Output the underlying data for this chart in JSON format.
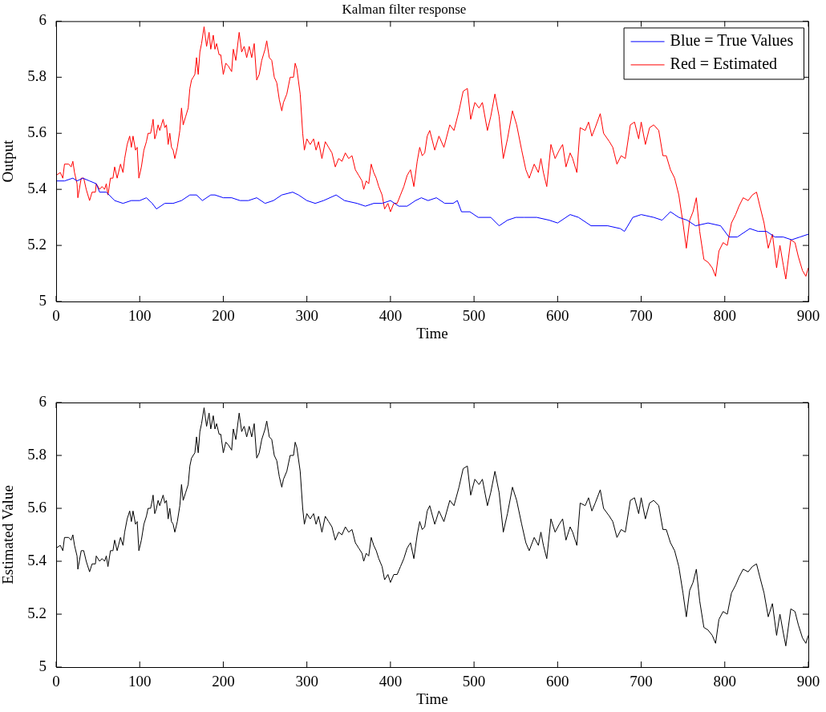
{
  "chart_data": [
    {
      "type": "line",
      "title": "Kalman filter response",
      "xlabel": "Time",
      "ylabel": "Output",
      "xlim": [
        0,
        900
      ],
      "xticks": [
        0,
        100,
        200,
        300,
        400,
        500,
        600,
        700,
        800,
        900
      ],
      "ylim": [
        5,
        6
      ],
      "yticks": [
        5,
        5.2,
        5.4,
        5.6,
        5.8,
        6
      ],
      "legend": "top right",
      "series": [
        {
          "name": "Blue = True Values",
          "color": "#0000ff",
          "x": [
            0,
            10,
            20,
            25,
            32,
            40,
            48,
            52,
            60,
            70,
            80,
            90,
            100,
            108,
            115,
            120,
            130,
            140,
            150,
            160,
            168,
            175,
            185,
            190,
            200,
            210,
            220,
            230,
            240,
            250,
            260,
            270,
            283,
            290,
            300,
            310,
            320,
            335,
            345,
            360,
            370,
            380,
            390,
            400,
            410,
            420,
            430,
            437,
            445,
            455,
            465,
            475,
            480,
            485,
            495,
            505,
            520,
            530,
            540,
            550,
            560,
            575,
            590,
            600,
            615,
            625,
            640,
            660,
            675,
            680,
            690,
            700,
            715,
            725,
            735,
            745,
            755,
            765,
            780,
            795,
            805,
            815,
            830,
            840,
            850,
            860,
            870,
            880,
            890,
            900
          ],
          "values": [
            5.43,
            5.43,
            5.44,
            5.43,
            5.44,
            5.43,
            5.42,
            5.39,
            5.39,
            5.36,
            5.35,
            5.36,
            5.36,
            5.37,
            5.35,
            5.33,
            5.35,
            5.35,
            5.36,
            5.38,
            5.38,
            5.36,
            5.38,
            5.38,
            5.37,
            5.37,
            5.36,
            5.36,
            5.37,
            5.35,
            5.36,
            5.38,
            5.39,
            5.38,
            5.36,
            5.35,
            5.36,
            5.38,
            5.36,
            5.35,
            5.34,
            5.35,
            5.35,
            5.36,
            5.34,
            5.34,
            5.36,
            5.37,
            5.36,
            5.37,
            5.35,
            5.35,
            5.36,
            5.32,
            5.32,
            5.3,
            5.3,
            5.27,
            5.29,
            5.3,
            5.3,
            5.3,
            5.29,
            5.28,
            5.31,
            5.3,
            5.27,
            5.27,
            5.26,
            5.25,
            5.3,
            5.31,
            5.3,
            5.29,
            5.32,
            5.3,
            5.29,
            5.27,
            5.28,
            5.27,
            5.23,
            5.23,
            5.26,
            5.25,
            5.25,
            5.23,
            5.23,
            5.22,
            5.23,
            5.24
          ]
        },
        {
          "name": "Red = Estimated",
          "color": "#ff0000",
          "x": [
            0,
            5,
            8,
            10,
            15,
            18,
            20,
            22,
            25,
            26,
            30,
            33,
            36,
            40,
            43,
            47,
            48,
            52,
            55,
            58,
            60,
            62,
            65,
            68,
            70,
            73,
            77,
            80,
            82,
            85,
            88,
            90,
            92,
            95,
            97,
            99,
            102,
            105,
            108,
            110,
            113,
            115,
            116,
            118,
            120,
            122,
            124,
            126,
            128,
            130,
            132,
            134,
            136,
            138,
            140,
            142,
            145,
            148,
            150,
            152,
            155,
            158,
            160,
            162,
            164,
            166,
            168,
            170,
            172,
            174,
            177,
            180,
            183,
            185,
            188,
            190,
            192,
            195,
            197,
            200,
            203,
            206,
            210,
            212,
            215,
            219,
            222,
            225,
            228,
            231,
            234,
            237,
            240,
            243,
            246,
            250,
            252,
            255,
            258,
            261,
            264,
            267,
            270,
            272,
            276,
            280,
            284,
            286,
            288,
            292,
            295,
            297,
            300,
            304,
            308,
            311,
            314,
            318,
            322,
            326,
            330,
            334,
            338,
            342,
            346,
            350,
            354,
            358,
            362,
            366,
            368,
            371,
            374,
            377,
            380,
            383,
            386,
            390,
            393,
            397,
            400,
            404,
            408,
            412,
            416,
            420,
            424,
            428,
            432,
            435,
            438,
            441,
            444,
            447,
            453,
            458,
            464,
            471,
            476,
            482,
            487,
            492,
            496,
            501,
            506,
            510,
            516,
            520,
            525,
            530,
            535,
            540,
            546,
            551,
            557,
            562,
            566,
            572,
            577,
            580,
            583,
            587,
            592,
            597,
            602,
            606,
            610,
            615,
            618,
            623,
            627,
            633,
            637,
            641,
            645,
            651,
            655,
            662,
            666,
            671,
            676,
            681,
            687,
            692,
            697,
            700,
            705,
            710,
            715,
            721,
            726,
            730,
            735,
            740,
            745,
            750,
            754,
            758,
            762,
            766,
            770,
            775,
            780,
            785,
            789,
            793,
            798,
            803,
            808,
            813,
            817,
            822,
            828,
            833,
            838,
            842,
            847,
            852,
            857,
            862,
            866,
            870,
            873,
            879,
            884,
            888,
            893,
            897,
            900
          ],
          "values": [
            5.45,
            5.46,
            5.44,
            5.49,
            5.49,
            5.48,
            5.5,
            5.46,
            5.42,
            5.37,
            5.44,
            5.44,
            5.4,
            5.36,
            5.39,
            5.39,
            5.42,
            5.4,
            5.41,
            5.4,
            5.42,
            5.38,
            5.44,
            5.44,
            5.48,
            5.44,
            5.49,
            5.46,
            5.51,
            5.56,
            5.59,
            5.55,
            5.59,
            5.54,
            5.55,
            5.44,
            5.48,
            5.54,
            5.57,
            5.6,
            5.6,
            5.63,
            5.65,
            5.58,
            5.6,
            5.63,
            5.61,
            5.63,
            5.65,
            5.62,
            5.63,
            5.56,
            5.6,
            5.55,
            5.54,
            5.51,
            5.55,
            5.61,
            5.69,
            5.63,
            5.66,
            5.69,
            5.76,
            5.79,
            5.8,
            5.81,
            5.87,
            5.81,
            5.89,
            5.92,
            5.98,
            5.91,
            5.96,
            5.9,
            5.95,
            5.9,
            5.92,
            5.88,
            5.88,
            5.81,
            5.85,
            5.84,
            5.82,
            5.9,
            5.86,
            5.96,
            5.89,
            5.91,
            5.87,
            5.91,
            5.87,
            5.92,
            5.79,
            5.81,
            5.86,
            5.9,
            5.93,
            5.87,
            5.86,
            5.8,
            5.78,
            5.72,
            5.68,
            5.71,
            5.74,
            5.8,
            5.8,
            5.85,
            5.83,
            5.74,
            5.6,
            5.54,
            5.58,
            5.56,
            5.58,
            5.54,
            5.57,
            5.51,
            5.57,
            5.55,
            5.53,
            5.48,
            5.51,
            5.5,
            5.53,
            5.51,
            5.52,
            5.47,
            5.45,
            5.43,
            5.4,
            5.43,
            5.42,
            5.49,
            5.46,
            5.44,
            5.41,
            5.38,
            5.33,
            5.35,
            5.32,
            5.35,
            5.35,
            5.38,
            5.41,
            5.45,
            5.47,
            5.41,
            5.5,
            5.55,
            5.52,
            5.53,
            5.59,
            5.61,
            5.54,
            5.59,
            5.55,
            5.63,
            5.61,
            5.68,
            5.75,
            5.76,
            5.65,
            5.71,
            5.69,
            5.71,
            5.61,
            5.66,
            5.74,
            5.66,
            5.51,
            5.58,
            5.68,
            5.63,
            5.54,
            5.47,
            5.44,
            5.49,
            5.46,
            5.51,
            5.46,
            5.41,
            5.56,
            5.51,
            5.54,
            5.56,
            5.48,
            5.53,
            5.51,
            5.46,
            5.62,
            5.61,
            5.64,
            5.59,
            5.62,
            5.67,
            5.6,
            5.57,
            5.55,
            5.49,
            5.52,
            5.51,
            5.63,
            5.64,
            5.58,
            5.64,
            5.56,
            5.62,
            5.63,
            5.61,
            5.52,
            5.52,
            5.47,
            5.44,
            5.38,
            5.28,
            5.19,
            5.29,
            5.32,
            5.37,
            5.25,
            5.15,
            5.14,
            5.12,
            5.09,
            5.18,
            5.21,
            5.2,
            5.28,
            5.31,
            5.34,
            5.37,
            5.36,
            5.38,
            5.39,
            5.34,
            5.28,
            5.19,
            5.24,
            5.12,
            5.2,
            5.13,
            5.08,
            5.22,
            5.21,
            5.16,
            5.11,
            5.09,
            5.12
          ]
        }
      ]
    },
    {
      "type": "line",
      "xlabel": "Time",
      "ylabel": "Estimated Value",
      "xlim": [
        0,
        900
      ],
      "xticks": [
        0,
        100,
        200,
        300,
        400,
        500,
        600,
        700,
        800,
        900
      ],
      "ylim": [
        5,
        6
      ],
      "yticks": [
        5,
        5.2,
        5.4,
        5.6,
        5.8,
        6
      ],
      "series": [
        {
          "color": "#000000",
          "x": [
            0,
            5,
            8,
            10,
            15,
            18,
            20,
            22,
            25,
            26,
            30,
            33,
            36,
            40,
            43,
            47,
            48,
            52,
            55,
            58,
            60,
            62,
            65,
            68,
            70,
            73,
            77,
            80,
            82,
            85,
            88,
            90,
            92,
            95,
            97,
            99,
            102,
            105,
            108,
            110,
            113,
            115,
            116,
            118,
            120,
            122,
            124,
            126,
            128,
            130,
            132,
            134,
            136,
            138,
            140,
            142,
            145,
            148,
            150,
            152,
            155,
            158,
            160,
            162,
            164,
            166,
            168,
            170,
            172,
            174,
            177,
            180,
            183,
            185,
            188,
            190,
            192,
            195,
            197,
            200,
            203,
            206,
            210,
            212,
            215,
            219,
            222,
            225,
            228,
            231,
            234,
            237,
            240,
            243,
            246,
            250,
            252,
            255,
            258,
            261,
            264,
            267,
            270,
            272,
            276,
            280,
            284,
            286,
            288,
            292,
            295,
            297,
            300,
            304,
            308,
            311,
            314,
            318,
            322,
            326,
            330,
            334,
            338,
            342,
            346,
            350,
            354,
            358,
            362,
            366,
            368,
            371,
            374,
            377,
            380,
            383,
            386,
            390,
            393,
            397,
            400,
            404,
            408,
            412,
            416,
            420,
            424,
            428,
            432,
            435,
            438,
            441,
            444,
            447,
            453,
            458,
            464,
            471,
            476,
            482,
            487,
            492,
            496,
            501,
            506,
            510,
            516,
            520,
            525,
            530,
            535,
            540,
            546,
            551,
            557,
            562,
            566,
            572,
            577,
            580,
            583,
            587,
            592,
            597,
            602,
            606,
            610,
            615,
            618,
            623,
            627,
            633,
            637,
            641,
            645,
            651,
            655,
            662,
            666,
            671,
            676,
            681,
            687,
            692,
            697,
            700,
            705,
            710,
            715,
            721,
            726,
            730,
            735,
            740,
            745,
            750,
            754,
            758,
            762,
            766,
            770,
            775,
            780,
            785,
            789,
            793,
            798,
            803,
            808,
            813,
            817,
            822,
            828,
            833,
            838,
            842,
            847,
            852,
            857,
            862,
            866,
            870,
            873,
            879,
            884,
            888,
            893,
            897,
            900
          ],
          "values": [
            5.45,
            5.46,
            5.44,
            5.49,
            5.49,
            5.48,
            5.5,
            5.46,
            5.42,
            5.37,
            5.44,
            5.44,
            5.4,
            5.36,
            5.39,
            5.39,
            5.42,
            5.4,
            5.41,
            5.4,
            5.42,
            5.38,
            5.44,
            5.44,
            5.48,
            5.44,
            5.49,
            5.46,
            5.51,
            5.56,
            5.59,
            5.55,
            5.59,
            5.54,
            5.55,
            5.44,
            5.48,
            5.54,
            5.57,
            5.6,
            5.6,
            5.63,
            5.65,
            5.58,
            5.6,
            5.63,
            5.61,
            5.63,
            5.65,
            5.62,
            5.63,
            5.56,
            5.6,
            5.55,
            5.54,
            5.51,
            5.55,
            5.61,
            5.69,
            5.63,
            5.66,
            5.69,
            5.76,
            5.79,
            5.8,
            5.81,
            5.87,
            5.81,
            5.89,
            5.92,
            5.98,
            5.91,
            5.96,
            5.9,
            5.95,
            5.9,
            5.92,
            5.88,
            5.88,
            5.81,
            5.85,
            5.84,
            5.82,
            5.9,
            5.86,
            5.96,
            5.89,
            5.91,
            5.87,
            5.91,
            5.87,
            5.92,
            5.79,
            5.81,
            5.86,
            5.9,
            5.93,
            5.87,
            5.86,
            5.8,
            5.78,
            5.72,
            5.68,
            5.71,
            5.74,
            5.8,
            5.8,
            5.85,
            5.83,
            5.74,
            5.6,
            5.54,
            5.58,
            5.56,
            5.58,
            5.54,
            5.57,
            5.51,
            5.57,
            5.55,
            5.53,
            5.48,
            5.51,
            5.5,
            5.53,
            5.51,
            5.52,
            5.47,
            5.45,
            5.43,
            5.4,
            5.43,
            5.42,
            5.49,
            5.46,
            5.44,
            5.41,
            5.38,
            5.33,
            5.35,
            5.32,
            5.35,
            5.35,
            5.38,
            5.41,
            5.45,
            5.47,
            5.41,
            5.5,
            5.55,
            5.52,
            5.53,
            5.59,
            5.61,
            5.54,
            5.59,
            5.55,
            5.63,
            5.61,
            5.68,
            5.75,
            5.76,
            5.65,
            5.71,
            5.69,
            5.71,
            5.61,
            5.66,
            5.74,
            5.66,
            5.51,
            5.58,
            5.68,
            5.63,
            5.54,
            5.47,
            5.44,
            5.49,
            5.46,
            5.51,
            5.46,
            5.41,
            5.56,
            5.51,
            5.54,
            5.56,
            5.48,
            5.53,
            5.51,
            5.46,
            5.62,
            5.61,
            5.64,
            5.59,
            5.62,
            5.67,
            5.6,
            5.57,
            5.55,
            5.49,
            5.52,
            5.51,
            5.63,
            5.64,
            5.58,
            5.64,
            5.56,
            5.62,
            5.63,
            5.61,
            5.52,
            5.52,
            5.47,
            5.44,
            5.38,
            5.28,
            5.19,
            5.29,
            5.32,
            5.37,
            5.25,
            5.15,
            5.14,
            5.12,
            5.09,
            5.18,
            5.21,
            5.2,
            5.28,
            5.31,
            5.34,
            5.37,
            5.36,
            5.38,
            5.39,
            5.34,
            5.28,
            5.19,
            5.24,
            5.12,
            5.2,
            5.13,
            5.08,
            5.22,
            5.21,
            5.16,
            5.11,
            5.09,
            5.12
          ]
        }
      ]
    }
  ]
}
